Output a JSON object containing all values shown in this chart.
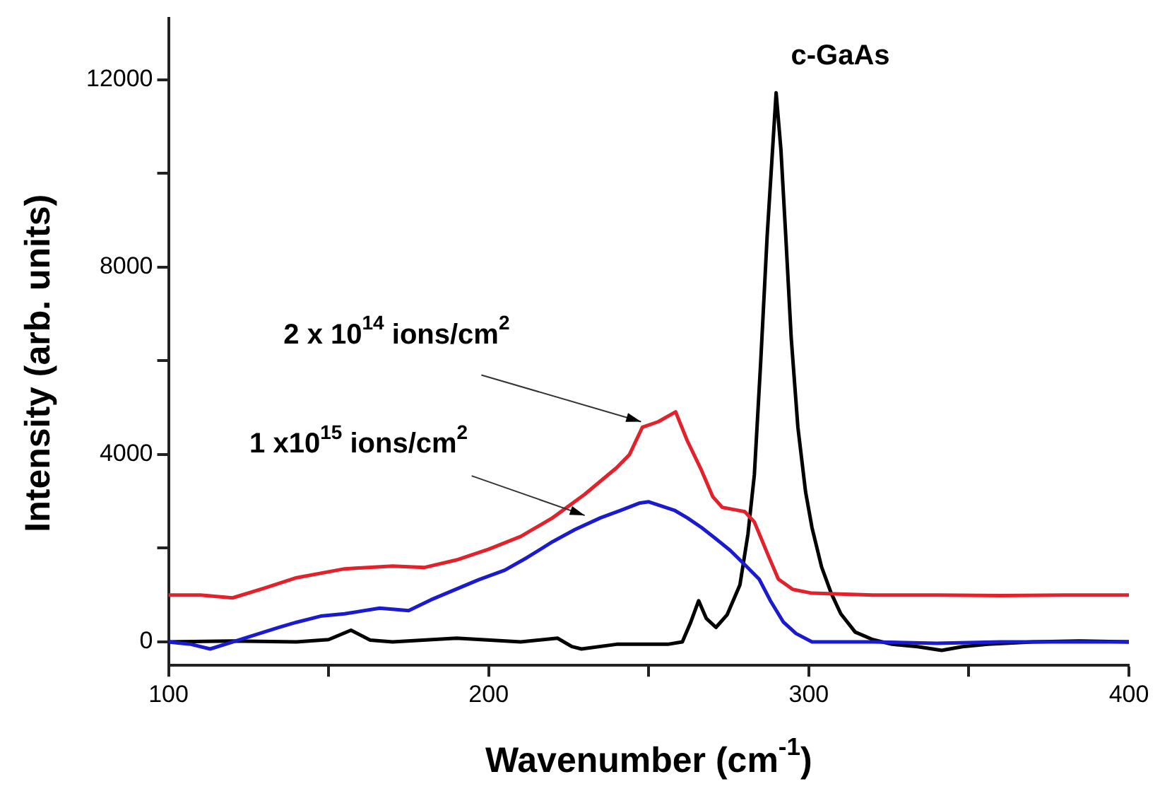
{
  "chart_data": {
    "type": "line",
    "xlabel": "Wavenumber (cm$^{-1}$)",
    "ylabel": "Intensity (arb. units)",
    "xlim": [
      100,
      400
    ],
    "xticks": [
      100,
      {
        "value": 150,
        "label": null
      },
      200,
      {
        "value": 250,
        "label": null
      },
      300,
      {
        "value": 350,
        "label": null
      },
      400
    ],
    "ylim": [
      -500,
      13300
    ],
    "yticks": [
      0,
      {
        "value": 2000,
        "label": null
      },
      4000,
      {
        "value": 6000,
        "label": null
      },
      8000,
      {
        "value": 10000,
        "label": null
      },
      12000
    ],
    "grid": false,
    "legend": false,
    "marker": "none",
    "line_style": "solid",
    "annotations": [
      {
        "text": "2 x 10$^{14}$ ions/cm$^{2}$",
        "x": 247.6,
        "y": 4700
      },
      {
        "text": "1 x10$^{15}$ ions/cm$^{2}$",
        "x": 230,
        "y": 2700
      },
      {
        "text": "c-GaAs",
        "x": 290,
        "y": 11700
      }
    ],
    "series": [
      {
        "color": "#e3212b",
        "x": [
          100,
          110,
          120,
          130,
          140,
          155,
          170,
          180,
          190,
          200,
          210,
          220,
          230,
          240,
          244,
          248,
          253,
          258.4,
          262,
          266.5,
          270,
          273,
          277,
          280,
          283,
          287,
          290.5,
          295,
          301,
          320,
          340,
          360,
          380,
          400
        ],
        "values": [
          1000,
          1000,
          940,
          1150,
          1370,
          1560,
          1620,
          1590,
          1750,
          1980,
          2250,
          2650,
          3150,
          3720,
          4000,
          4580,
          4700,
          4910,
          4300,
          3660,
          3100,
          2870,
          2820,
          2780,
          2560,
          1900,
          1340,
          1120,
          1040,
          1000,
          1000,
          990,
          1000,
          1000
        ]
      },
      {
        "color": "#1a1acf",
        "x": [
          100,
          107,
          113,
          120,
          127,
          134,
          140,
          147.5,
          155,
          166,
          175,
          182,
          190,
          197,
          205,
          212,
          220,
          227,
          235,
          241,
          247,
          250,
          254,
          258,
          262,
          266.5,
          271,
          275.5,
          280,
          284.5,
          288,
          292,
          296,
          301,
          320,
          340,
          360,
          380,
          400
        ],
        "values": [
          0,
          -50,
          -150,
          0,
          150,
          300,
          420,
          550,
          600,
          720,
          670,
          900,
          1130,
          1330,
          1530,
          1800,
          2140,
          2400,
          2650,
          2800,
          2960,
          2990,
          2900,
          2810,
          2650,
          2440,
          2200,
          1950,
          1650,
          1340,
          880,
          430,
          180,
          0,
          0,
          -30,
          0,
          0,
          0
        ]
      },
      {
        "color": "#000000",
        "x": [
          100,
          120,
          140,
          150,
          157,
          163,
          170,
          190,
          210,
          221.5,
          226,
          229,
          240,
          256,
          260.5,
          263,
          265.6,
          268,
          271,
          274.5,
          278.5,
          281,
          283,
          285,
          287,
          289.8,
          291.3,
          292.8,
          294.5,
          296.6,
          299,
          301,
          304,
          307,
          310,
          314.5,
          320,
          326,
          334,
          341.5,
          348,
          356,
          370,
          385,
          400
        ],
        "values": [
          0,
          20,
          0,
          50,
          250,
          40,
          0,
          80,
          0,
          80,
          -100,
          -150,
          -50,
          -50,
          0,
          400,
          880,
          500,
          310,
          580,
          1220,
          2300,
          3570,
          6000,
          8670,
          11720,
          10500,
          8670,
          6500,
          4580,
          3200,
          2440,
          1600,
          1040,
          600,
          210,
          50,
          -50,
          -100,
          -180,
          -100,
          -50,
          0,
          20,
          0
        ]
      }
    ]
  }
}
